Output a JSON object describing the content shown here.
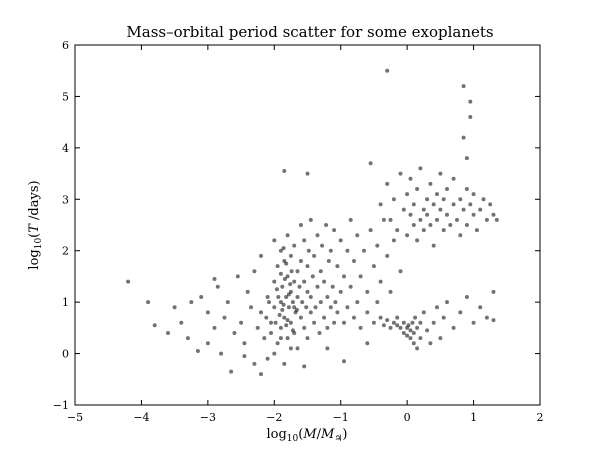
{
  "chart_data": {
    "type": "scatter",
    "title": "Mass–orbital period scatter for some exoplanets",
    "xlabel_parts": [
      "log",
      "10",
      "(",
      "M",
      "/",
      "M",
      "♃",
      ")"
    ],
    "ylabel_parts": [
      "log",
      "10",
      "(",
      "T",
      " /days)"
    ],
    "xlim": [
      -5,
      2
    ],
    "ylim": [
      -1,
      6
    ],
    "xticks": [
      -5,
      -4,
      -3,
      -2,
      -1,
      0,
      1,
      2
    ],
    "yticks": [
      -1,
      0,
      1,
      2,
      3,
      4,
      5,
      6
    ],
    "xtick_labels": [
      "−5",
      "−4",
      "−3",
      "−2",
      "−1",
      "0",
      "1",
      "2"
    ],
    "ytick_labels": [
      "−1",
      "0",
      "1",
      "2",
      "3",
      "4",
      "5",
      "6"
    ],
    "grid": false,
    "marker_color": "#000000",
    "marker_opacity": 0.55,
    "points": [
      [
        -4.2,
        1.4
      ],
      [
        -3.9,
        1.0
      ],
      [
        -3.8,
        0.55
      ],
      [
        -3.5,
        0.9
      ],
      [
        -3.4,
        0.6
      ],
      [
        -3.3,
        0.3
      ],
      [
        -3.1,
        1.1
      ],
      [
        -3.0,
        0.8
      ],
      [
        -3.0,
        0.2
      ],
      [
        -2.9,
        0.5
      ],
      [
        -2.85,
        1.3
      ],
      [
        -2.8,
        0.0
      ],
      [
        -2.75,
        0.7
      ],
      [
        -2.7,
        1.0
      ],
      [
        -2.6,
        0.4
      ],
      [
        -2.55,
        1.5
      ],
      [
        -2.5,
        0.6
      ],
      [
        -2.45,
        0.2
      ],
      [
        -2.4,
        1.2
      ],
      [
        -2.35,
        0.9
      ],
      [
        -2.3,
        -0.2
      ],
      [
        -2.3,
        1.6
      ],
      [
        -2.25,
        0.5
      ],
      [
        -2.2,
        0.8
      ],
      [
        -2.2,
        1.9
      ],
      [
        -2.15,
        0.3
      ],
      [
        -2.1,
        1.1
      ],
      [
        -2.1,
        -0.1
      ],
      [
        -2.05,
        0.6
      ],
      [
        -2.0,
        2.2
      ],
      [
        -2.0,
        1.4
      ],
      [
        -2.0,
        0.9
      ],
      [
        -1.95,
        0.2
      ],
      [
        -1.95,
        1.7
      ],
      [
        -1.9,
        1.0
      ],
      [
        -1.9,
        0.5
      ],
      [
        -1.9,
        2.0
      ],
      [
        -1.88,
        1.3
      ],
      [
        -1.85,
        0.7
      ],
      [
        -1.85,
        1.8
      ],
      [
        -1.85,
        -0.2
      ],
      [
        -1.82,
        1.1
      ],
      [
        -1.8,
        1.5
      ],
      [
        -1.8,
        0.3
      ],
      [
        -1.8,
        2.3
      ],
      [
        -1.78,
        0.9
      ],
      [
        -1.75,
        1.2
      ],
      [
        -1.75,
        0.6
      ],
      [
        -1.75,
        1.9
      ],
      [
        -1.72,
        1.0
      ],
      [
        -1.7,
        1.4
      ],
      [
        -1.7,
        0.4
      ],
      [
        -1.7,
        2.1
      ],
      [
        -1.68,
        0.8
      ],
      [
        -1.65,
        1.6
      ],
      [
        -1.65,
        1.1
      ],
      [
        -1.65,
        0.1
      ],
      [
        -1.62,
        1.3
      ],
      [
        -1.6,
        0.7
      ],
      [
        -1.6,
        1.8
      ],
      [
        -1.6,
        2.5
      ],
      [
        -1.58,
        1.0
      ],
      [
        -1.55,
        0.5
      ],
      [
        -1.55,
        1.4
      ],
      [
        -1.55,
        2.2
      ],
      [
        -1.52,
        0.9
      ],
      [
        -1.5,
        1.2
      ],
      [
        -1.5,
        0.3
      ],
      [
        -1.5,
        1.7
      ],
      [
        -1.48,
        2.0
      ],
      [
        -1.45,
        0.8
      ],
      [
        -1.45,
        1.1
      ],
      [
        -1.45,
        2.6
      ],
      [
        -1.42,
        1.5
      ],
      [
        -1.4,
        0.6
      ],
      [
        -1.4,
        1.9
      ],
      [
        -1.38,
        0.9
      ],
      [
        -1.35,
        1.3
      ],
      [
        -1.35,
        2.3
      ],
      [
        -1.32,
        0.4
      ],
      [
        -1.3,
        1.0
      ],
      [
        -1.3,
        1.6
      ],
      [
        -1.28,
        2.1
      ],
      [
        -1.25,
        0.7
      ],
      [
        -1.25,
        1.4
      ],
      [
        -1.22,
        2.5
      ],
      [
        -1.2,
        1.1
      ],
      [
        -1.2,
        0.5
      ],
      [
        -1.18,
        1.8
      ],
      [
        -1.15,
        0.9
      ],
      [
        -1.15,
        2.0
      ],
      [
        -1.12,
        1.3
      ],
      [
        -1.1,
        0.6
      ],
      [
        -1.1,
        2.4
      ],
      [
        -1.08,
        1.0
      ],
      [
        -1.05,
        1.7
      ],
      [
        -1.05,
        0.8
      ],
      [
        -1.0,
        2.2
      ],
      [
        -1.0,
        1.2
      ],
      [
        -0.95,
        0.6
      ],
      [
        -0.95,
        1.5
      ],
      [
        -0.9,
        2.0
      ],
      [
        -0.9,
        0.9
      ],
      [
        -0.85,
        1.3
      ],
      [
        -0.85,
        2.6
      ],
      [
        -0.8,
        0.7
      ],
      [
        -0.8,
        1.8
      ],
      [
        -0.75,
        1.0
      ],
      [
        -0.75,
        2.3
      ],
      [
        -0.7,
        0.5
      ],
      [
        -0.7,
        1.5
      ],
      [
        -0.65,
        2.0
      ],
      [
        -0.6,
        0.8
      ],
      [
        -0.6,
        1.2
      ],
      [
        -0.55,
        2.4
      ],
      [
        -0.5,
        0.6
      ],
      [
        -0.5,
        1.7
      ],
      [
        -0.45,
        1.0
      ],
      [
        -0.45,
        2.1
      ],
      [
        -0.4,
        0.7
      ],
      [
        -0.4,
        1.4
      ],
      [
        -0.35,
        0.55
      ],
      [
        -0.35,
        2.6
      ],
      [
        -0.3,
        0.65
      ],
      [
        -0.3,
        1.9
      ],
      [
        -0.25,
        0.5
      ],
      [
        -0.25,
        1.2
      ],
      [
        -0.2,
        0.6
      ],
      [
        -0.2,
        2.2
      ],
      [
        -0.15,
        0.55
      ],
      [
        -0.15,
        0.7
      ],
      [
        -0.1,
        0.5
      ],
      [
        -0.1,
        1.6
      ],
      [
        -0.05,
        0.6
      ],
      [
        -0.05,
        0.4
      ],
      [
        0.0,
        0.5
      ],
      [
        0.0,
        0.35
      ],
      [
        0.02,
        0.55
      ],
      [
        0.05,
        0.45
      ],
      [
        0.05,
        0.3
      ],
      [
        0.08,
        0.6
      ],
      [
        0.1,
        0.4
      ],
      [
        0.1,
        0.2
      ],
      [
        0.12,
        0.7
      ],
      [
        0.15,
        0.5
      ],
      [
        0.15,
        0.1
      ],
      [
        0.2,
        0.6
      ],
      [
        0.2,
        0.3
      ],
      [
        0.25,
        0.8
      ],
      [
        0.3,
        0.45
      ],
      [
        0.35,
        0.2
      ],
      [
        0.4,
        0.6
      ],
      [
        0.45,
        0.9
      ],
      [
        0.5,
        0.3
      ],
      [
        0.55,
        0.7
      ],
      [
        0.6,
        1.0
      ],
      [
        0.7,
        0.5
      ],
      [
        0.8,
        0.8
      ],
      [
        0.9,
        1.1
      ],
      [
        1.0,
        0.6
      ],
      [
        1.1,
        0.9
      ],
      [
        1.2,
        0.7
      ],
      [
        1.3,
        0.65
      ],
      [
        1.3,
        1.2
      ],
      [
        -0.4,
        2.9
      ],
      [
        -0.3,
        3.3
      ],
      [
        -0.25,
        2.6
      ],
      [
        -0.2,
        3.0
      ],
      [
        -0.15,
        2.4
      ],
      [
        -0.1,
        3.5
      ],
      [
        -0.05,
        2.8
      ],
      [
        0.0,
        3.1
      ],
      [
        0.0,
        2.3
      ],
      [
        0.05,
        2.7
      ],
      [
        0.05,
        3.4
      ],
      [
        0.1,
        2.5
      ],
      [
        0.1,
        2.9
      ],
      [
        0.15,
        3.2
      ],
      [
        0.15,
        2.2
      ],
      [
        0.2,
        2.6
      ],
      [
        0.2,
        3.6
      ],
      [
        0.25,
        2.8
      ],
      [
        0.25,
        2.4
      ],
      [
        0.3,
        3.0
      ],
      [
        0.3,
        2.7
      ],
      [
        0.35,
        3.3
      ],
      [
        0.35,
        2.5
      ],
      [
        0.4,
        2.9
      ],
      [
        0.4,
        2.1
      ],
      [
        0.45,
        3.1
      ],
      [
        0.45,
        2.6
      ],
      [
        0.5,
        2.8
      ],
      [
        0.5,
        3.5
      ],
      [
        0.55,
        2.4
      ],
      [
        0.55,
        3.0
      ],
      [
        0.6,
        2.7
      ],
      [
        0.6,
        3.2
      ],
      [
        0.65,
        2.5
      ],
      [
        0.7,
        2.9
      ],
      [
        0.7,
        3.4
      ],
      [
        0.75,
        2.6
      ],
      [
        0.8,
        3.0
      ],
      [
        0.8,
        2.3
      ],
      [
        0.85,
        2.8
      ],
      [
        0.9,
        3.2
      ],
      [
        0.9,
        2.5
      ],
      [
        0.95,
        2.9
      ],
      [
        1.0,
        2.7
      ],
      [
        1.0,
        3.1
      ],
      [
        1.05,
        2.4
      ],
      [
        1.1,
        2.8
      ],
      [
        1.15,
        3.0
      ],
      [
        1.2,
        2.6
      ],
      [
        1.25,
        2.9
      ],
      [
        1.3,
        2.7
      ],
      [
        1.35,
        2.6
      ],
      [
        -0.3,
        5.5
      ],
      [
        0.85,
        5.2
      ],
      [
        0.95,
        4.9
      ],
      [
        0.95,
        4.6
      ],
      [
        0.85,
        4.2
      ],
      [
        0.9,
        3.8
      ],
      [
        -1.85,
        3.55
      ],
      [
        -1.5,
        3.5
      ],
      [
        -0.55,
        3.7
      ],
      [
        -2.9,
        1.45
      ],
      [
        -3.25,
        1.0
      ],
      [
        -3.6,
        0.4
      ],
      [
        -2.65,
        -0.35
      ],
      [
        -2.2,
        -0.4
      ],
      [
        -1.55,
        -0.25
      ],
      [
        -0.95,
        -0.15
      ],
      [
        -0.6,
        0.2
      ],
      [
        -1.2,
        0.1
      ],
      [
        -2.45,
        -0.05
      ],
      [
        -3.15,
        0.05
      ],
      [
        -2.0,
        0.0
      ],
      [
        -1.75,
        0.1
      ],
      [
        -1.9,
        0.3
      ],
      [
        -2.05,
        0.4
      ],
      [
        -1.82,
        0.55
      ],
      [
        -1.92,
        0.75
      ],
      [
        -1.86,
        0.95
      ],
      [
        -1.78,
        1.15
      ],
      [
        -1.96,
        1.25
      ],
      [
        -1.84,
        1.45
      ],
      [
        -1.74,
        1.6
      ],
      [
        -1.94,
        1.1
      ],
      [
        -1.88,
        0.85
      ],
      [
        -1.8,
        0.65
      ],
      [
        -1.98,
        0.6
      ],
      [
        -1.7,
        0.9
      ],
      [
        -1.76,
        1.35
      ],
      [
        -1.9,
        1.55
      ],
      [
        -1.82,
        1.75
      ],
      [
        -1.86,
        2.05
      ],
      [
        -1.72,
        0.45
      ],
      [
        -1.66,
        0.85
      ],
      [
        -2.08,
        1.0
      ],
      [
        -2.12,
        0.7
      ]
    ]
  }
}
